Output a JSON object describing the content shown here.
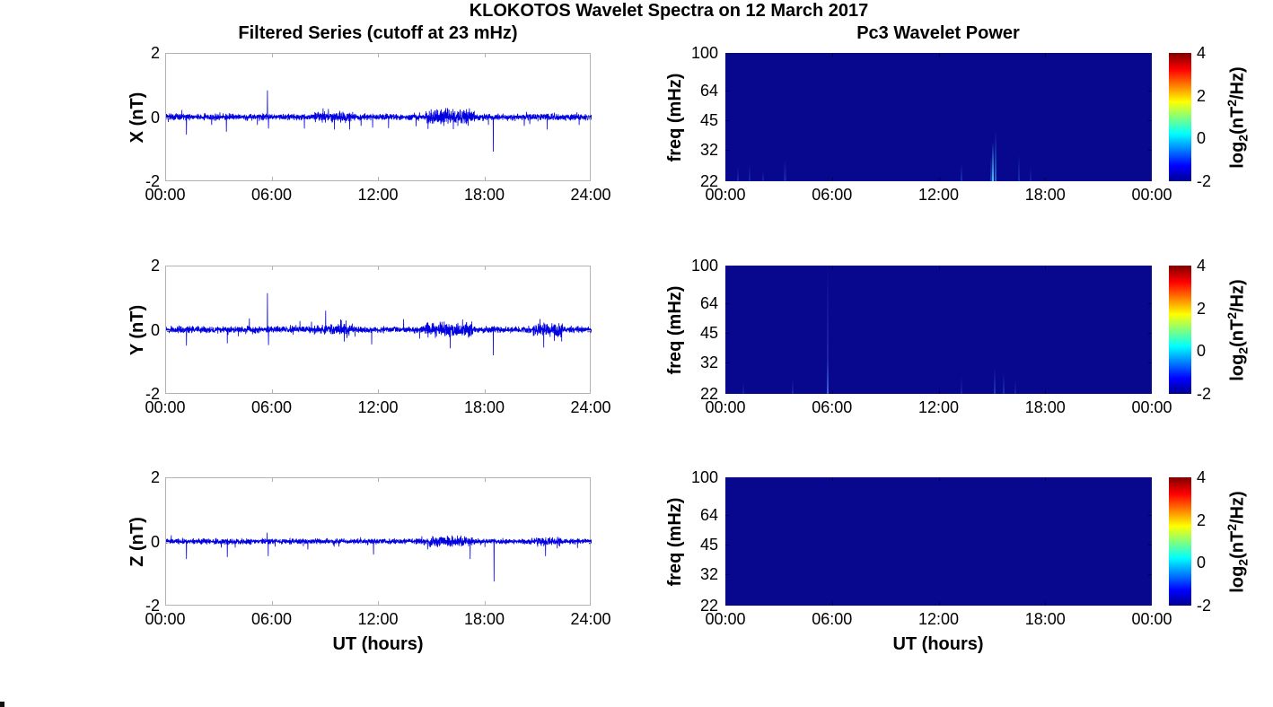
{
  "figure": {
    "title": "KLOKOTOS Wavelet Spectra on 12 March 2017",
    "background_color": "#ffffff"
  },
  "left_column": {
    "title": "Filtered Series (cutoff at 23 mHz)",
    "xlabel": "UT (hours)",
    "x_ticks": [
      "00:00",
      "06:00",
      "12:00",
      "18:00",
      "24:00"
    ],
    "y_ticks": [
      "2",
      "0",
      "-2"
    ],
    "rows": [
      {
        "ylabel": "X (nT)"
      },
      {
        "ylabel": "Y (nT)"
      },
      {
        "ylabel": "Z (nT)"
      }
    ],
    "line_color": "#0000e0",
    "frame_color": "#b3b3b3"
  },
  "right_column": {
    "title": "Pc3 Wavelet Power",
    "xlabel": "UT (hours)",
    "x_ticks": [
      "00:00",
      "06:00",
      "12:00",
      "18:00",
      "00:00"
    ],
    "ylabel": "freq (mHz)",
    "y_ticks": [
      "100",
      "64",
      "45",
      "32",
      "22"
    ],
    "background_color": "#08088f",
    "colorbar": {
      "ticks": [
        "4",
        "2",
        "0",
        "-2"
      ],
      "label": {
        "pre": "log",
        "sub": "2",
        "mid": "(nT",
        "sup": "2",
        "post": "/Hz)"
      },
      "gradient": [
        "#00008f",
        "#0000ff",
        "#00ffff",
        "#ffff00",
        "#ff0000",
        "#7f0000"
      ]
    }
  },
  "chart_data": [
    {
      "type": "line",
      "component": "X",
      "title": "Filtered Series (cutoff at 23 mHz)",
      "ylabel": "X (nT)",
      "xlabel": "UT (hours)",
      "xlim_hours": [
        0,
        24
      ],
      "ylim": [
        -2,
        2
      ],
      "x_tick_labels": [
        "00:00",
        "06:00",
        "12:00",
        "18:00",
        "24:00"
      ],
      "y_tick_values": [
        2,
        0,
        -2
      ],
      "baseline": 0.03,
      "noise_amp": 0.06,
      "bursts": [
        [
          8.3,
          10.6,
          1.5
        ],
        [
          14.7,
          17.4,
          2.3
        ]
      ],
      "spikes": [
        [
          1.15,
          -0.52
        ],
        [
          3.4,
          -0.43
        ],
        [
          5.72,
          0.86
        ],
        [
          5.78,
          -0.33
        ],
        [
          7.8,
          -0.33
        ],
        [
          8.85,
          0.3
        ],
        [
          9.15,
          0.28
        ],
        [
          9.5,
          -0.36
        ],
        [
          10.35,
          -0.36
        ],
        [
          11.0,
          -0.25
        ],
        [
          11.65,
          -0.3
        ],
        [
          12.55,
          -0.32
        ],
        [
          14.1,
          -0.26
        ],
        [
          16.2,
          -0.35
        ],
        [
          18.45,
          -1.05
        ],
        [
          20.2,
          -0.25
        ],
        [
          21.5,
          -0.36
        ],
        [
          23.3,
          -0.22
        ]
      ]
    },
    {
      "type": "line",
      "component": "Y",
      "ylabel": "Y (nT)",
      "xlabel": "UT (hours)",
      "xlim_hours": [
        0,
        24
      ],
      "ylim": [
        -2,
        2
      ],
      "x_tick_labels": [
        "00:00",
        "06:00",
        "12:00",
        "18:00",
        "24:00"
      ],
      "y_tick_values": [
        2,
        0,
        -2
      ],
      "baseline": 0.03,
      "noise_amp": 0.06,
      "bursts": [
        [
          8.3,
          10.6,
          1.5
        ],
        [
          14.6,
          17.3,
          2.2
        ],
        [
          20.7,
          22.4,
          2.1
        ]
      ],
      "spikes": [
        [
          1.15,
          -0.47
        ],
        [
          3.45,
          -0.4
        ],
        [
          4.7,
          0.38
        ],
        [
          5.72,
          1.17
        ],
        [
          5.78,
          -0.45
        ],
        [
          7.55,
          0.3
        ],
        [
          8.2,
          0.28
        ],
        [
          9.0,
          0.62
        ],
        [
          9.85,
          0.35
        ],
        [
          10.05,
          -0.34
        ],
        [
          10.15,
          0.32
        ],
        [
          11.6,
          -0.43
        ],
        [
          13.4,
          0.36
        ],
        [
          14.3,
          -0.25
        ],
        [
          18.45,
          -0.77
        ],
        [
          21.3,
          -0.53
        ],
        [
          21.9,
          -0.32
        ]
      ]
    },
    {
      "type": "line",
      "component": "Z",
      "ylabel": "Z (nT)",
      "xlabel": "UT (hours)",
      "xlim_hours": [
        0,
        24
      ],
      "ylim": [
        -2,
        2
      ],
      "x_tick_labels": [
        "00:00",
        "06:00",
        "12:00",
        "18:00",
        "24:00"
      ],
      "y_tick_values": [
        2,
        0,
        -2
      ],
      "baseline": 0.03,
      "noise_amp": 0.05,
      "bursts": [
        [
          14.8,
          17.3,
          1.9
        ],
        [
          20.8,
          22.3,
          1.5
        ]
      ],
      "spikes": [
        [
          1.15,
          -0.52
        ],
        [
          3.45,
          -0.46
        ],
        [
          5.7,
          0.3
        ],
        [
          5.76,
          -0.43
        ],
        [
          8.0,
          -0.22
        ],
        [
          11.7,
          -0.38
        ],
        [
          14.75,
          -0.22
        ],
        [
          17.15,
          -0.52
        ],
        [
          18.5,
          -1.22
        ],
        [
          21.4,
          -0.43
        ],
        [
          23.2,
          -0.18
        ]
      ]
    },
    {
      "type": "heatmap",
      "component": "X",
      "title": "Pc3 Wavelet Power",
      "ylabel": "freq (mHz)",
      "xlabel": "UT (hours)",
      "xlim_hours": [
        0,
        24
      ],
      "ylim_mhz": [
        22,
        100
      ],
      "y_scale": "log",
      "y_tick_values": [
        100,
        64,
        45,
        32,
        22
      ],
      "x_tick_labels": [
        "00:00",
        "06:00",
        "12:00",
        "18:00",
        "00:00"
      ],
      "clim_log2_power": [
        -2,
        4
      ],
      "background_value": -2,
      "streaks": [
        {
          "t": 0.7,
          "f_top": 26,
          "color": "#2446c8",
          "width": 2,
          "alpha": 0.55
        },
        {
          "t": 1.35,
          "f_top": 27,
          "color": "#2446c8",
          "width": 2,
          "alpha": 0.5
        },
        {
          "t": 2.1,
          "f_top": 25,
          "color": "#2446c8",
          "width": 2,
          "alpha": 0.45
        },
        {
          "t": 3.35,
          "f_top": 28,
          "color": "#2446c8",
          "width": 3,
          "alpha": 0.5
        },
        {
          "t": 13.3,
          "f_top": 27,
          "color": "#2a55d0",
          "width": 2,
          "alpha": 0.55
        },
        {
          "t": 14.95,
          "f_top": 30,
          "color": "#2a55d0",
          "width": 2,
          "alpha": 0.7
        },
        {
          "t": 15.05,
          "f_top": 35,
          "color": "#45c8f0",
          "width": 2,
          "alpha": 1
        },
        {
          "t": 15.22,
          "f_top": 40,
          "color": "#2d7bd8",
          "width": 2,
          "alpha": 0.85
        },
        {
          "t": 16.5,
          "f_top": 30,
          "color": "#2a55d0",
          "width": 2,
          "alpha": 0.5
        },
        {
          "t": 17.2,
          "f_top": 26,
          "color": "#2446c8",
          "width": 2,
          "alpha": 0.4
        }
      ]
    },
    {
      "type": "heatmap",
      "component": "Y",
      "ylabel": "freq (mHz)",
      "xlabel": "UT (hours)",
      "xlim_hours": [
        0,
        24
      ],
      "ylim_mhz": [
        22,
        100
      ],
      "y_scale": "log",
      "y_tick_values": [
        100,
        64,
        45,
        32,
        22
      ],
      "x_tick_labels": [
        "00:00",
        "06:00",
        "12:00",
        "18:00",
        "00:00"
      ],
      "clim_log2_power": [
        -2,
        4
      ],
      "background_value": -2,
      "streaks": [
        {
          "t": 1.0,
          "f_top": 25,
          "color": "#2446c8",
          "width": 2,
          "alpha": 0.4
        },
        {
          "t": 3.8,
          "f_top": 26,
          "color": "#2446c8",
          "width": 2,
          "alpha": 0.5
        },
        {
          "t": 5.78,
          "f_top": 100,
          "color": "#3c50dc",
          "width": 2,
          "alpha": 0.55
        },
        {
          "t": 5.78,
          "f_top": 32,
          "color": "#4668e6",
          "width": 2,
          "alpha": 0.8
        },
        {
          "t": 13.3,
          "f_top": 27,
          "color": "#2446c8",
          "width": 2,
          "alpha": 0.45
        },
        {
          "t": 15.15,
          "f_top": 30,
          "color": "#2f5ad2",
          "width": 2,
          "alpha": 0.6
        },
        {
          "t": 15.65,
          "f_top": 28,
          "color": "#2f5ad2",
          "width": 2,
          "alpha": 0.5
        },
        {
          "t": 16.3,
          "f_top": 26,
          "color": "#2446c8",
          "width": 2,
          "alpha": 0.4
        }
      ]
    },
    {
      "type": "heatmap",
      "component": "Z",
      "ylabel": "freq (mHz)",
      "xlabel": "UT (hours)",
      "xlim_hours": [
        0,
        24
      ],
      "ylim_mhz": [
        22,
        100
      ],
      "y_scale": "log",
      "y_tick_values": [
        100,
        64,
        45,
        32,
        22
      ],
      "x_tick_labels": [
        "00:00",
        "06:00",
        "12:00",
        "18:00",
        "00:00"
      ],
      "clim_log2_power": [
        -2,
        4
      ],
      "background_value": -2,
      "streaks": []
    }
  ]
}
